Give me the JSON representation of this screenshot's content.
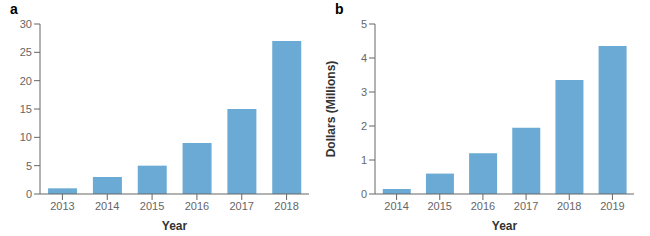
{
  "chart_data": [
    {
      "type": "bar",
      "title": "a",
      "categories": [
        "2013",
        "2014",
        "2015",
        "2016",
        "2017",
        "2018"
      ],
      "values": [
        1,
        3,
        5,
        9,
        15,
        27
      ],
      "color": "#6aaad4",
      "xlabel": "Year",
      "ylim": [
        0,
        30
      ],
      "yticks": [
        0,
        5,
        10,
        15,
        20,
        25,
        30
      ]
    },
    {
      "type": "bar",
      "title": "b",
      "categories": [
        "2014",
        "2015",
        "2016",
        "2017",
        "2018",
        "2019"
      ],
      "values": [
        0.15,
        0.6,
        1.2,
        1.95,
        3.35,
        4.35
      ],
      "color": "#6aaad4",
      "xlabel": "Year",
      "ylabel": "Dollars (Millions)",
      "ylim": [
        0,
        5
      ],
      "yticks": [
        0,
        1,
        2,
        3,
        4,
        5
      ]
    }
  ]
}
